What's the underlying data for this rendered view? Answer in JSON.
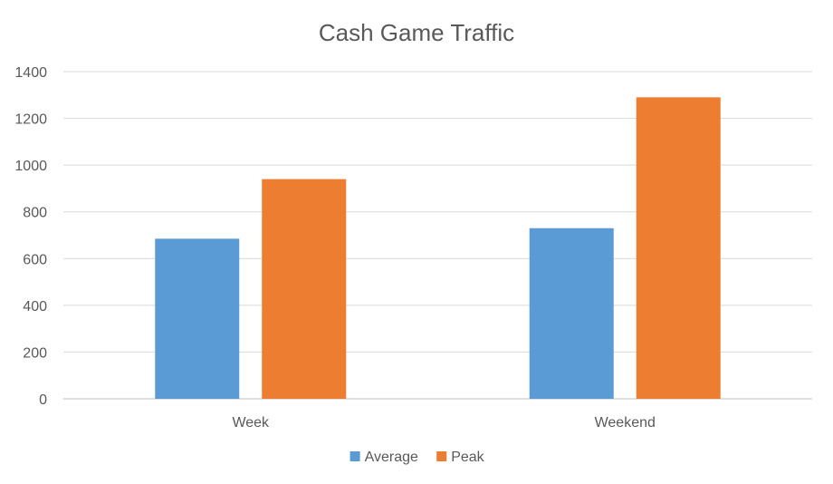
{
  "chart_data": {
    "type": "bar",
    "title": "Cash Game Traffic",
    "categories": [
      "Week",
      "Weekend"
    ],
    "series": [
      {
        "name": "Average",
        "values": [
          685,
          730
        ],
        "color": "#5b9bd5"
      },
      {
        "name": "Peak",
        "values": [
          940,
          1290
        ],
        "color": "#ed7d31"
      }
    ],
    "ylim": [
      0,
      1400
    ],
    "yticks": [
      0,
      200,
      400,
      600,
      800,
      1000,
      1200,
      1400
    ],
    "xlabel": "",
    "ylabel": "",
    "grid": true,
    "legend_position": "bottom"
  }
}
